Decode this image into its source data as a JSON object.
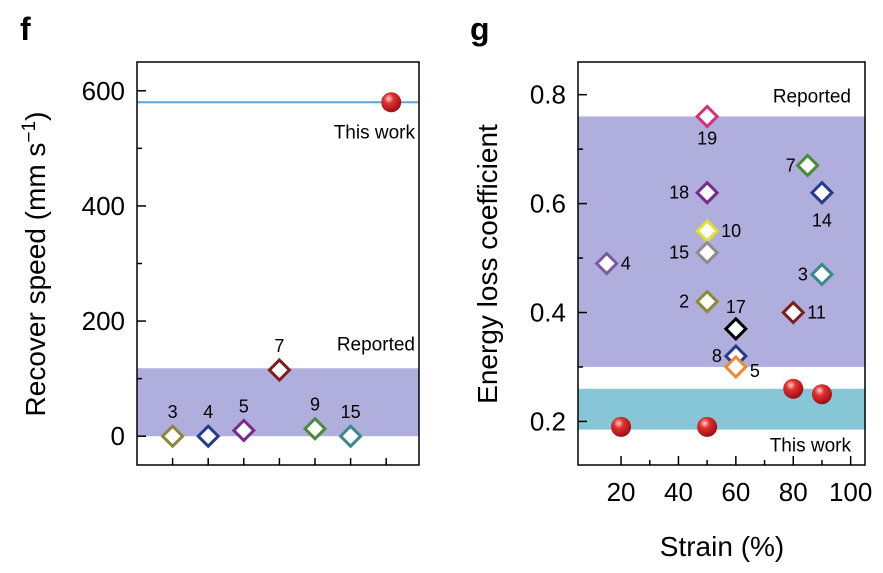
{
  "chart_data": [
    {
      "panel_label": "f",
      "type": "scatter",
      "ylabel": "Recover speed (mm s",
      "ylabel_sup": "−1",
      "ylabel_end": ")",
      "ylim": [
        -50,
        650
      ],
      "yticks": [
        0,
        200,
        400,
        600
      ],
      "ytick_labels": [
        "0",
        "200",
        "400",
        "600"
      ],
      "x_categories": 8,
      "bands": [
        {
          "label": "Reported",
          "y_from": 0,
          "y_to": 118,
          "color": "#b0aedc"
        }
      ],
      "reference_lines": [
        {
          "label": "This work",
          "y": 580,
          "color": "#5aa5d6"
        }
      ],
      "series": [
        {
          "name": "This work",
          "marker": "sphere",
          "color": "#d42027",
          "points": [
            {
              "x": 7,
              "y": 580
            }
          ]
        },
        {
          "name": "Reported",
          "marker": "diamond",
          "points": [
            {
              "x": 1,
              "y": 0,
              "label": "3",
              "color": "#8a8a3a"
            },
            {
              "x": 2,
              "y": 0,
              "label": "4",
              "color": "#283a8c"
            },
            {
              "x": 3,
              "y": 10,
              "label": "5",
              "color": "#7a2a8e"
            },
            {
              "x": 4,
              "y": 115,
              "label": "7",
              "color": "#7a1f1f"
            },
            {
              "x": 5,
              "y": 13,
              "label": "9",
              "color": "#4a8a3a"
            },
            {
              "x": 6,
              "y": 0,
              "label": "15",
              "color": "#3a8a8a"
            }
          ]
        }
      ]
    },
    {
      "panel_label": "g",
      "type": "scatter",
      "xlabel": "Strain (%)",
      "ylabel": "Energy loss coefficient",
      "xlim": [
        5,
        105
      ],
      "ylim": [
        0.12,
        0.86
      ],
      "xticks": [
        20,
        40,
        60,
        80,
        100
      ],
      "xtick_labels": [
        "20",
        "40",
        "60",
        "80",
        "100"
      ],
      "yticks": [
        0.2,
        0.4,
        0.6,
        0.8
      ],
      "ytick_labels": [
        "0.2",
        "0.4",
        "0.6",
        "0.8"
      ],
      "bands": [
        {
          "label": "Reported",
          "y_from": 0.3,
          "y_to": 0.76,
          "color": "#b0aedc"
        },
        {
          "label": "This work",
          "y_from": 0.185,
          "y_to": 0.26,
          "color": "#86c6d6"
        }
      ],
      "series": [
        {
          "name": "This work",
          "marker": "sphere",
          "color": "#d42027",
          "points": [
            {
              "x": 20,
              "y": 0.19
            },
            {
              "x": 50,
              "y": 0.19
            },
            {
              "x": 80,
              "y": 0.26
            },
            {
              "x": 90,
              "y": 0.25
            }
          ]
        },
        {
          "name": "Reported",
          "marker": "diamond",
          "points": [
            {
              "x": 50,
              "y": 0.76,
              "label": "19",
              "color": "#d6307a"
            },
            {
              "x": 85,
              "y": 0.67,
              "label": "7",
              "color": "#4a8a3a"
            },
            {
              "x": 90,
              "y": 0.62,
              "label": "14",
              "color": "#283a8c"
            },
            {
              "x": 50,
              "y": 0.62,
              "label": "18",
              "color": "#7a2a8e"
            },
            {
              "x": 50,
              "y": 0.55,
              "label": "10",
              "color": "#e0e030"
            },
            {
              "x": 50,
              "y": 0.51,
              "label": "15",
              "color": "#8c8c8c"
            },
            {
              "x": 15,
              "y": 0.49,
              "label": "4",
              "color": "#7a5aa8"
            },
            {
              "x": 90,
              "y": 0.47,
              "label": "3",
              "color": "#3a8a8a"
            },
            {
              "x": 50,
              "y": 0.42,
              "label": "2",
              "color": "#8a8a3a"
            },
            {
              "x": 80,
              "y": 0.4,
              "label": "11",
              "color": "#7a1f1f"
            },
            {
              "x": 60,
              "y": 0.37,
              "label": "17",
              "color": "#000000"
            },
            {
              "x": 60,
              "y": 0.32,
              "label": "8",
              "color": "#283a8c"
            },
            {
              "x": 60,
              "y": 0.3,
              "label": "5",
              "color": "#f08a30"
            }
          ]
        }
      ]
    }
  ]
}
